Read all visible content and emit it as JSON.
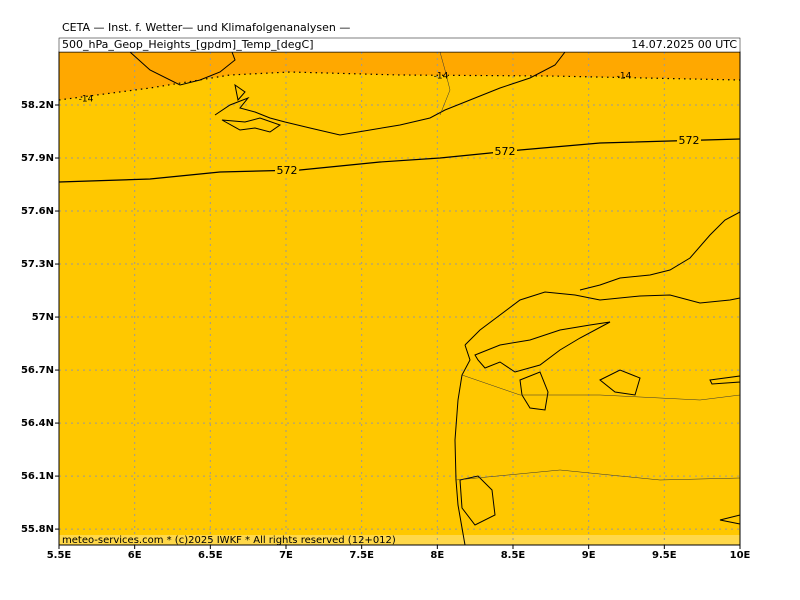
{
  "header": {
    "title": "CETA — Inst. f. Wetter— und Klimafolgenanalysen —",
    "subtitle": "500_hPa_Geop_Heights_[gpdm]_Temp_[degC]",
    "date": "14.07.2025 00 UTC"
  },
  "map": {
    "xlim": [
      5.5,
      10
    ],
    "ylim": [
      55.71,
      58.5
    ],
    "xticks": [
      {
        "value": 5.5,
        "label": "5.5E"
      },
      {
        "value": 6,
        "label": "6E"
      },
      {
        "value": 6.5,
        "label": "6.5E"
      },
      {
        "value": 7,
        "label": "7E"
      },
      {
        "value": 7.5,
        "label": "7.5E"
      },
      {
        "value": 8,
        "label": "8E"
      },
      {
        "value": 8.5,
        "label": "8.5E"
      },
      {
        "value": 9,
        "label": "9E"
      },
      {
        "value": 9.5,
        "label": "9.5E"
      },
      {
        "value": 10,
        "label": "10E"
      }
    ],
    "yticks": [
      {
        "value": 58.2,
        "label": "58.2N"
      },
      {
        "value": 57.9,
        "label": "57.9N"
      },
      {
        "value": 57.6,
        "label": "57.6N"
      },
      {
        "value": 57.3,
        "label": "57.3N"
      },
      {
        "value": 57,
        "label": "57N"
      },
      {
        "value": 56.7,
        "label": "56.7N"
      },
      {
        "value": 56.4,
        "label": "56.4N"
      },
      {
        "value": 56.1,
        "label": "56.1N"
      },
      {
        "value": 55.8,
        "label": "55.8N"
      }
    ],
    "grid": true,
    "height_contour_labels": [
      "572",
      "572",
      "572"
    ],
    "temp_contour_labels": [
      "-14",
      "-14",
      "-14"
    ],
    "footer": "meteo-services.com * (c)2025 IWKF * All rights reserved (12+012)"
  }
}
